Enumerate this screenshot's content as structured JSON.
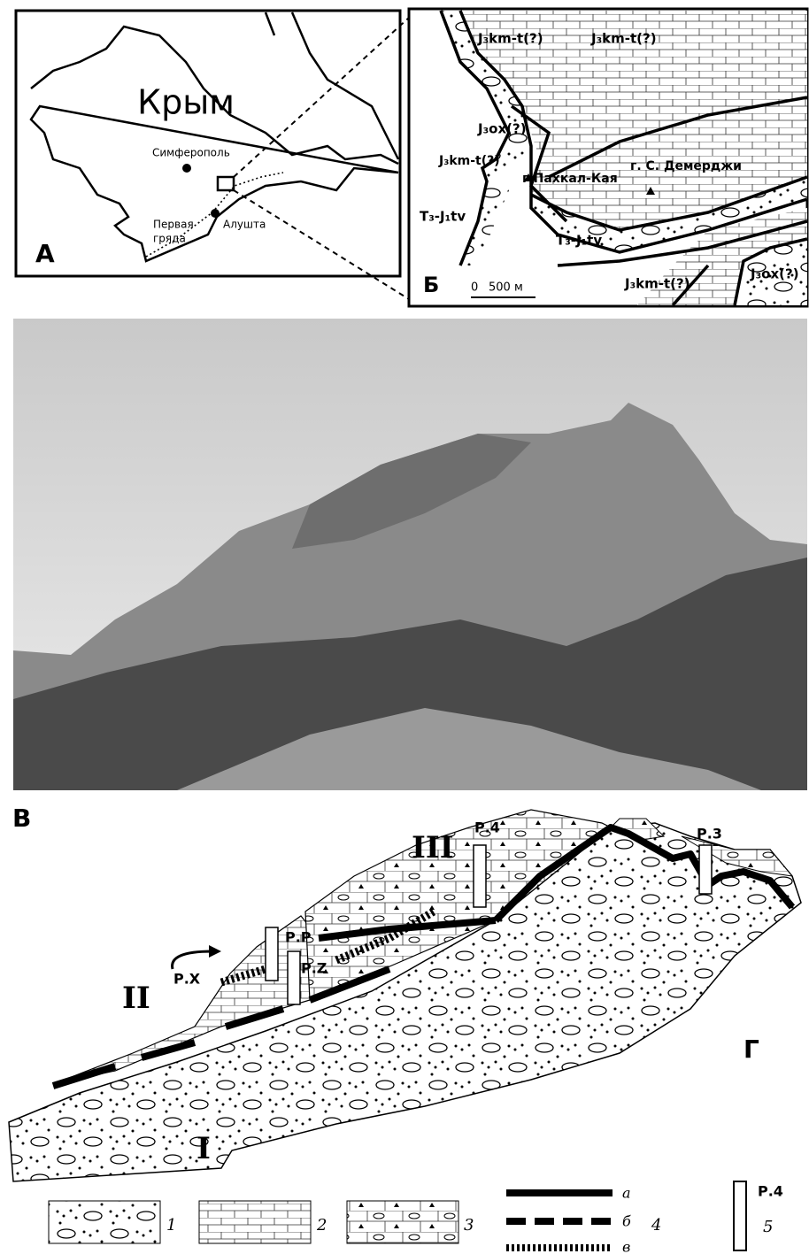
{
  "panel_a": {
    "label": "А",
    "region": "Крым",
    "cities": [
      "Симферополь",
      "Алушта"
    ],
    "ridge": [
      "Первая",
      "гряда"
    ]
  },
  "panel_b": {
    "label": "Б",
    "units": [
      "J₃km-t(?)",
      "J₃km-t(?)",
      "J₃ox(?)",
      "J₃km-t(?)",
      "T₃-J₁tv",
      "T₃-J₁tv",
      "J₃km-t(?)",
      "J₃ox(?)"
    ],
    "peaks": [
      "г.Пахкал-Кая",
      "г. С. Демерджи"
    ],
    "scale": [
      "0",
      "500 м"
    ]
  },
  "panel_c": {
    "label": "В"
  },
  "panel_d": {
    "label": "Г",
    "sequences": [
      "I",
      "II",
      "III"
    ],
    "sections": [
      "Р.4",
      "Р.3",
      "Р.Р",
      "Р.Х",
      "Р.Z"
    ]
  },
  "legend": {
    "items": [
      "1",
      "2",
      "3"
    ],
    "lines": [
      "а",
      "б",
      "в"
    ],
    "line_number": "4",
    "section_symbol": "Р.4",
    "section_number": "5"
  }
}
